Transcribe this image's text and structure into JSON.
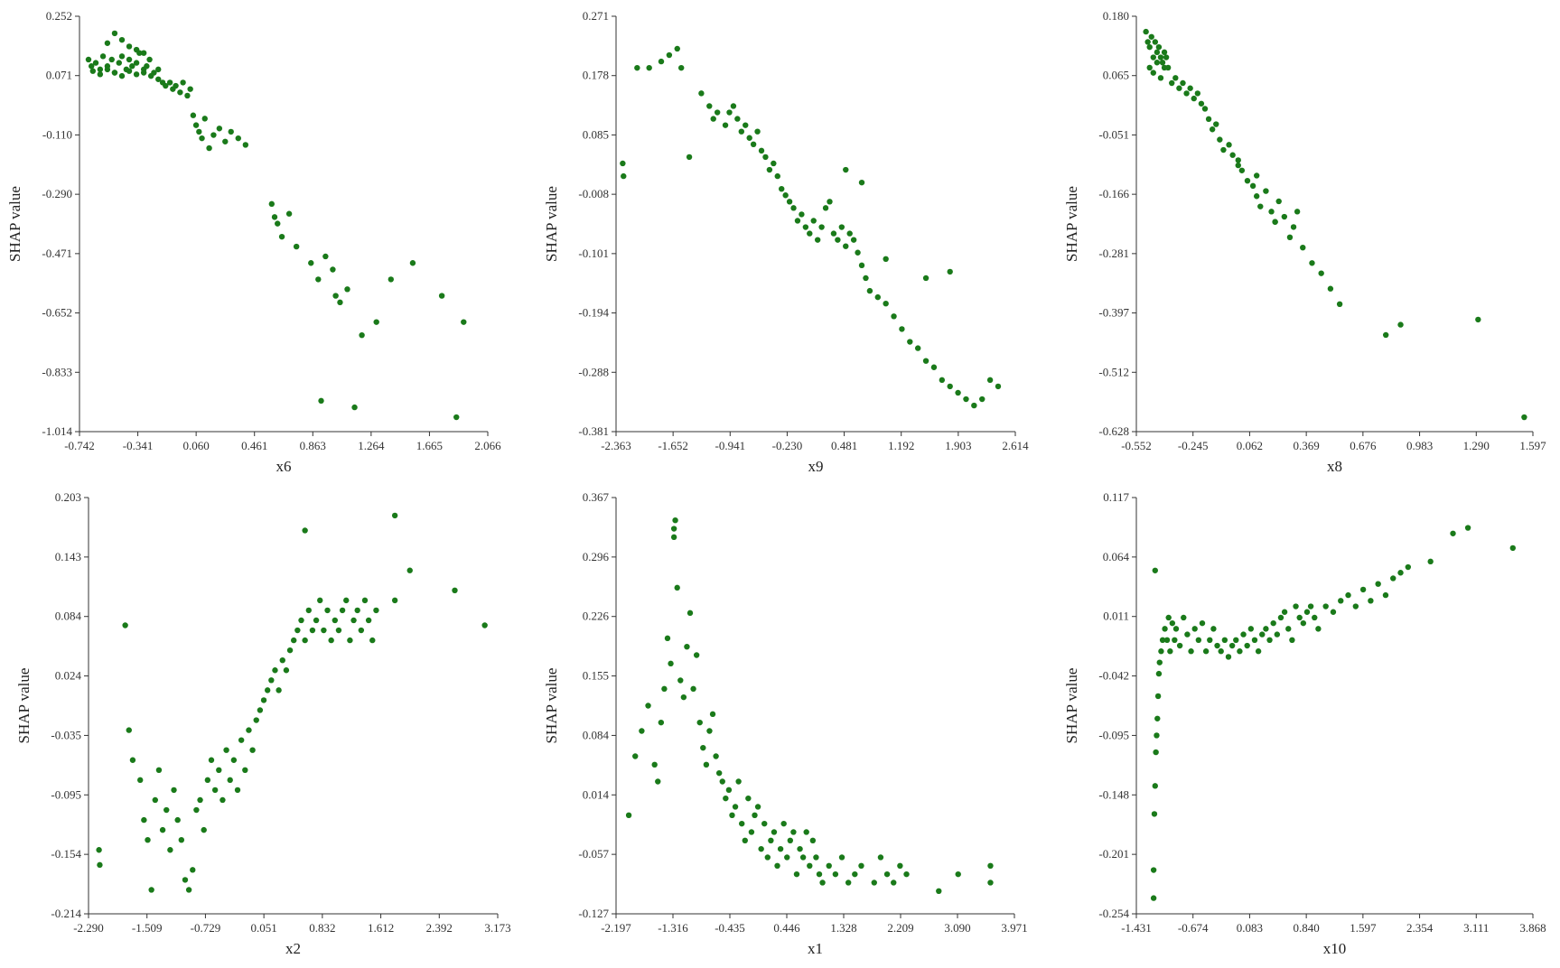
{
  "figure": {
    "point_color": "#1a7a1a",
    "axis_color": "#333333"
  },
  "chart_data": [
    {
      "type": "scatter",
      "xlabel": "x6",
      "ylabel": "SHAP value",
      "xticks": [
        "-0.742",
        "-0.341",
        "0.060",
        "0.461",
        "0.863",
        "1.264",
        "1.665",
        "2.066"
      ],
      "yticks": [
        "-1.014",
        "-0.833",
        "-0.652",
        "-0.471",
        "-0.290",
        "-0.110",
        "0.071",
        "0.252"
      ],
      "xlim": [
        -0.742,
        2.066
      ],
      "ylim": [
        -1.014,
        0.252
      ],
      "x": [
        -0.68,
        -0.66,
        -0.63,
        -0.6,
        -0.58,
        -0.55,
        -0.52,
        -0.5,
        -0.47,
        -0.45,
        -0.42,
        -0.4,
        -0.38,
        -0.35,
        -0.33,
        -0.3,
        -0.28,
        -0.26,
        -0.23,
        -0.2,
        -0.65,
        -0.6,
        -0.55,
        -0.5,
        -0.45,
        -0.4,
        -0.35,
        -0.3,
        -0.25,
        -0.55,
        -0.5,
        -0.45,
        -0.4,
        -0.35,
        -0.3,
        -0.2,
        -0.17,
        -0.15,
        -0.12,
        -0.1,
        -0.08,
        -0.05,
        -0.03,
        0.0,
        0.02,
        0.04,
        0.06,
        0.08,
        0.1,
        0.12,
        0.15,
        0.18,
        0.22,
        0.26,
        0.3,
        0.35,
        0.4,
        0.58,
        0.6,
        0.62,
        0.65,
        0.7,
        0.75,
        0.85,
        0.9,
        0.95,
        1.0,
        1.02,
        1.05,
        1.1,
        1.2,
        1.3,
        1.4,
        1.55,
        1.75,
        1.9,
        0.92,
        1.15,
        1.85
      ],
      "y": [
        0.12,
        0.1,
        0.11,
        0.09,
        0.13,
        0.1,
        0.12,
        0.08,
        0.11,
        0.13,
        0.09,
        0.12,
        0.1,
        0.11,
        0.14,
        0.09,
        0.1,
        0.12,
        0.08,
        0.09,
        0.085,
        0.075,
        0.09,
        0.08,
        0.07,
        0.085,
        0.075,
        0.08,
        0.07,
        0.17,
        0.2,
        0.18,
        0.16,
        0.15,
        0.14,
        0.06,
        0.05,
        0.04,
        0.05,
        0.03,
        0.04,
        0.02,
        0.05,
        0.01,
        0.03,
        -0.05,
        -0.08,
        -0.1,
        -0.12,
        -0.06,
        -0.15,
        -0.11,
        -0.09,
        -0.13,
        -0.1,
        -0.12,
        -0.14,
        -0.32,
        -0.36,
        -0.38,
        -0.42,
        -0.35,
        -0.45,
        -0.5,
        -0.55,
        -0.48,
        -0.52,
        -0.6,
        -0.62,
        -0.58,
        -0.72,
        -0.68,
        -0.55,
        -0.5,
        -0.6,
        -0.68,
        -0.92,
        -0.94,
        -0.97
      ]
    },
    {
      "type": "scatter",
      "xlabel": "x9",
      "ylabel": "SHAP value",
      "xticks": [
        "-2.363",
        "-1.652",
        "-0.941",
        "-0.230",
        "0.481",
        "1.192",
        "1.903",
        "2.614"
      ],
      "yticks": [
        "-0.381",
        "-0.288",
        "-0.194",
        "-0.101",
        "-0.008",
        "0.085",
        "0.178",
        "0.271"
      ],
      "xlim": [
        -2.363,
        2.614
      ],
      "ylim": [
        -0.381,
        0.271
      ],
      "x": [
        -2.28,
        -2.27,
        -2.1,
        -1.95,
        -1.8,
        -1.7,
        -1.6,
        -1.55,
        -1.45,
        -1.3,
        -1.2,
        -1.15,
        -1.1,
        -1.0,
        -0.95,
        -0.9,
        -0.85,
        -0.8,
        -0.75,
        -0.7,
        -0.65,
        -0.6,
        -0.55,
        -0.5,
        -0.45,
        -0.4,
        -0.35,
        -0.3,
        -0.25,
        -0.2,
        -0.15,
        -0.1,
        -0.05,
        0.0,
        0.05,
        0.1,
        0.15,
        0.2,
        0.25,
        0.3,
        0.35,
        0.4,
        0.45,
        0.5,
        0.55,
        0.6,
        0.65,
        0.7,
        0.75,
        0.8,
        0.9,
        1.0,
        1.1,
        1.2,
        1.3,
        1.4,
        1.5,
        1.6,
        1.7,
        1.8,
        1.9,
        2.0,
        2.1,
        2.2,
        2.3,
        2.4,
        0.5,
        0.7,
        1.0,
        1.5,
        1.8
      ],
      "y": [
        0.04,
        0.02,
        0.19,
        0.19,
        0.2,
        0.21,
        0.22,
        0.19,
        0.05,
        0.15,
        0.13,
        0.11,
        0.12,
        0.1,
        0.12,
        0.13,
        0.11,
        0.09,
        0.1,
        0.08,
        0.07,
        0.09,
        0.06,
        0.05,
        0.03,
        0.04,
        0.02,
        0.0,
        -0.01,
        -0.02,
        -0.03,
        -0.05,
        -0.04,
        -0.06,
        -0.07,
        -0.05,
        -0.08,
        -0.06,
        -0.03,
        -0.02,
        -0.07,
        -0.08,
        -0.06,
        -0.09,
        -0.07,
        -0.08,
        -0.1,
        -0.12,
        -0.14,
        -0.16,
        -0.17,
        -0.18,
        -0.2,
        -0.22,
        -0.24,
        -0.25,
        -0.27,
        -0.28,
        -0.3,
        -0.31,
        -0.32,
        -0.33,
        -0.34,
        -0.33,
        -0.3,
        -0.31,
        0.03,
        0.01,
        -0.11,
        -0.14,
        -0.13
      ]
    },
    {
      "type": "scatter",
      "xlabel": "x8",
      "ylabel": "SHAP value",
      "xticks": [
        "-0.552",
        "-0.245",
        "0.062",
        "0.369",
        "0.676",
        "0.983",
        "1.290",
        "1.597"
      ],
      "yticks": [
        "-0.628",
        "-0.512",
        "-0.397",
        "-0.281",
        "-0.166",
        "-0.051",
        "0.065",
        "0.180"
      ],
      "xlim": [
        -0.552,
        1.597
      ],
      "ylim": [
        -0.628,
        0.18
      ],
      "x": [
        -0.5,
        -0.49,
        -0.48,
        -0.47,
        -0.46,
        -0.45,
        -0.44,
        -0.43,
        -0.42,
        -0.41,
        -0.4,
        -0.39,
        -0.38,
        -0.48,
        -0.46,
        -0.44,
        -0.42,
        -0.4,
        -0.36,
        -0.34,
        -0.32,
        -0.3,
        -0.28,
        -0.26,
        -0.24,
        -0.22,
        -0.2,
        -0.18,
        -0.16,
        -0.14,
        -0.12,
        -0.1,
        -0.08,
        -0.05,
        -0.03,
        0.0,
        0.02,
        0.05,
        0.08,
        0.1,
        0.12,
        0.15,
        0.18,
        0.2,
        0.22,
        0.25,
        0.28,
        0.3,
        0.32,
        0.35,
        0.4,
        0.45,
        0.5,
        0.55,
        0.8,
        0.88,
        1.3,
        1.55,
        0.0,
        0.1,
        0.2
      ],
      "y": [
        0.15,
        0.13,
        0.12,
        0.14,
        0.1,
        0.13,
        0.11,
        0.12,
        0.1,
        0.09,
        0.11,
        0.1,
        0.08,
        0.08,
        0.07,
        0.09,
        0.06,
        0.08,
        0.05,
        0.06,
        0.04,
        0.05,
        0.03,
        0.04,
        0.02,
        0.03,
        0.01,
        0.0,
        -0.02,
        -0.04,
        -0.03,
        -0.06,
        -0.08,
        -0.07,
        -0.09,
        -0.1,
        -0.12,
        -0.14,
        -0.15,
        -0.17,
        -0.19,
        -0.16,
        -0.2,
        -0.22,
        -0.18,
        -0.21,
        -0.25,
        -0.23,
        -0.2,
        -0.27,
        -0.3,
        -0.32,
        -0.35,
        -0.38,
        -0.44,
        -0.42,
        -0.41,
        -0.6,
        -0.11,
        -0.13,
        -0.22
      ]
    },
    {
      "type": "scatter",
      "xlabel": "x2",
      "ylabel": "SHAP value",
      "xticks": [
        "-2.290",
        "-1.509",
        "-0.729",
        "0.051",
        "0.832",
        "1.612",
        "2.392",
        "3.173"
      ],
      "yticks": [
        "-0.214",
        "-0.154",
        "-0.095",
        "-0.035",
        "0.024",
        "0.084",
        "0.143",
        "0.203"
      ],
      "xlim": [
        -2.29,
        3.173
      ],
      "ylim": [
        -0.214,
        0.203
      ],
      "x": [
        -2.15,
        -2.14,
        -1.8,
        -1.75,
        -1.7,
        -1.6,
        -1.55,
        -1.5,
        -1.45,
        -1.4,
        -1.35,
        -1.3,
        -1.25,
        -1.2,
        -1.15,
        -1.1,
        -1.05,
        -1.0,
        -0.95,
        -0.9,
        -0.85,
        -0.8,
        -0.75,
        -0.7,
        -0.65,
        -0.6,
        -0.55,
        -0.5,
        -0.45,
        -0.4,
        -0.35,
        -0.3,
        -0.25,
        -0.2,
        -0.15,
        -0.1,
        -0.05,
        0.0,
        0.05,
        0.1,
        0.15,
        0.2,
        0.25,
        0.3,
        0.35,
        0.4,
        0.45,
        0.5,
        0.55,
        0.6,
        0.65,
        0.7,
        0.75,
        0.8,
        0.85,
        0.9,
        0.95,
        1.0,
        1.05,
        1.1,
        1.15,
        1.2,
        1.25,
        1.3,
        1.35,
        1.4,
        1.45,
        1.5,
        1.55,
        1.8,
        2.0,
        2.6,
        3.0,
        0.6,
        1.8
      ],
      "y": [
        -0.15,
        -0.165,
        0.075,
        -0.03,
        -0.06,
        -0.08,
        -0.12,
        -0.14,
        -0.19,
        -0.1,
        -0.07,
        -0.13,
        -0.11,
        -0.15,
        -0.09,
        -0.12,
        -0.14,
        -0.18,
        -0.19,
        -0.17,
        -0.11,
        -0.1,
        -0.13,
        -0.08,
        -0.06,
        -0.09,
        -0.07,
        -0.1,
        -0.05,
        -0.08,
        -0.06,
        -0.09,
        -0.04,
        -0.07,
        -0.03,
        -0.05,
        -0.02,
        -0.01,
        0.0,
        0.01,
        0.02,
        0.03,
        0.01,
        0.04,
        0.03,
        0.05,
        0.06,
        0.07,
        0.08,
        0.06,
        0.09,
        0.07,
        0.08,
        0.1,
        0.07,
        0.09,
        0.06,
        0.08,
        0.07,
        0.09,
        0.1,
        0.06,
        0.08,
        0.09,
        0.07,
        0.1,
        0.08,
        0.06,
        0.09,
        0.1,
        0.13,
        0.11,
        0.075,
        0.17,
        0.185
      ]
    },
    {
      "type": "scatter",
      "xlabel": "x1",
      "ylabel": "SHAP value",
      "xticks": [
        "-2.197",
        "-1.316",
        "-0.435",
        "0.446",
        "1.328",
        "2.209",
        "3.090",
        "3.971"
      ],
      "yticks": [
        "-0.127",
        "-0.057",
        "0.014",
        "0.084",
        "0.155",
        "0.226",
        "0.296",
        "0.367"
      ],
      "xlim": [
        -2.197,
        3.971
      ],
      "ylim": [
        -0.127,
        0.367
      ],
      "x": [
        -2.0,
        -1.9,
        -1.8,
        -1.7,
        -1.6,
        -1.55,
        -1.5,
        -1.45,
        -1.4,
        -1.35,
        -1.3,
        -1.28,
        -1.25,
        -1.2,
        -1.15,
        -1.1,
        -1.05,
        -1.0,
        -0.95,
        -0.9,
        -0.85,
        -0.8,
        -0.75,
        -0.7,
        -0.65,
        -0.6,
        -0.55,
        -0.5,
        -0.45,
        -0.4,
        -0.35,
        -0.3,
        -0.25,
        -0.2,
        -0.15,
        -0.1,
        -0.05,
        0.0,
        0.05,
        0.1,
        0.15,
        0.2,
        0.25,
        0.3,
        0.35,
        0.4,
        0.45,
        0.5,
        0.55,
        0.6,
        0.65,
        0.7,
        0.75,
        0.8,
        0.85,
        0.9,
        0.95,
        1.0,
        1.1,
        1.2,
        1.3,
        1.4,
        1.5,
        1.6,
        1.8,
        1.9,
        2.0,
        2.1,
        2.2,
        2.3,
        2.8,
        3.1,
        3.6,
        3.6,
        -1.3
      ],
      "y": [
        -0.01,
        0.06,
        0.09,
        0.12,
        0.05,
        0.03,
        0.1,
        0.14,
        0.2,
        0.17,
        0.33,
        0.34,
        0.26,
        0.15,
        0.13,
        0.19,
        0.23,
        0.14,
        0.18,
        0.1,
        0.07,
        0.05,
        0.09,
        0.11,
        0.06,
        0.04,
        0.03,
        0.01,
        0.02,
        -0.01,
        0.0,
        0.03,
        -0.02,
        -0.04,
        0.01,
        -0.03,
        -0.01,
        0.0,
        -0.05,
        -0.02,
        -0.06,
        -0.04,
        -0.03,
        -0.07,
        -0.05,
        -0.02,
        -0.06,
        -0.04,
        -0.03,
        -0.08,
        -0.05,
        -0.06,
        -0.03,
        -0.07,
        -0.04,
        -0.06,
        -0.08,
        -0.09,
        -0.07,
        -0.08,
        -0.06,
        -0.09,
        -0.08,
        -0.07,
        -0.09,
        -0.06,
        -0.08,
        -0.09,
        -0.07,
        -0.08,
        -0.1,
        -0.08,
        -0.07,
        -0.09,
        0.32
      ]
    },
    {
      "type": "scatter",
      "xlabel": "x10",
      "ylabel": "SHAP value",
      "xticks": [
        "-1.431",
        "-0.674",
        "0.083",
        "0.840",
        "1.597",
        "2.354",
        "3.111",
        "3.868"
      ],
      "yticks": [
        "-0.254",
        "-0.201",
        "-0.148",
        "-0.095",
        "-0.042",
        "0.011",
        "0.064",
        "0.117"
      ],
      "xlim": [
        -1.431,
        3.868
      ],
      "ylim": [
        -0.254,
        0.117
      ],
      "x": [
        -1.2,
        -1.2,
        -1.19,
        -1.18,
        -1.17,
        -1.16,
        -1.15,
        -1.14,
        -1.13,
        -1.12,
        -1.1,
        -1.08,
        -1.05,
        -1.02,
        -1.0,
        -0.98,
        -0.95,
        -0.92,
        -0.9,
        -0.85,
        -0.8,
        -0.75,
        -0.7,
        -0.65,
        -0.6,
        -0.55,
        -0.5,
        -0.45,
        -0.4,
        -0.35,
        -0.3,
        -0.25,
        -0.2,
        -0.15,
        -0.1,
        -0.05,
        0.0,
        0.05,
        0.1,
        0.15,
        0.2,
        0.25,
        0.3,
        0.35,
        0.4,
        0.45,
        0.5,
        0.55,
        0.6,
        0.65,
        0.7,
        0.75,
        0.8,
        0.85,
        0.9,
        0.95,
        1.0,
        1.1,
        1.2,
        1.3,
        1.4,
        1.5,
        1.6,
        1.7,
        1.8,
        1.9,
        2.0,
        2.1,
        2.2,
        2.5,
        2.8,
        3.0,
        3.6,
        -1.18
      ],
      "y": [
        -0.24,
        -0.215,
        -0.165,
        -0.14,
        -0.11,
        -0.095,
        -0.08,
        -0.06,
        -0.04,
        -0.03,
        -0.02,
        -0.01,
        0.0,
        -0.01,
        0.01,
        -0.02,
        0.005,
        -0.01,
        0.0,
        -0.015,
        0.01,
        -0.005,
        -0.02,
        0.0,
        -0.01,
        0.005,
        -0.02,
        -0.01,
        0.0,
        -0.015,
        -0.02,
        -0.01,
        -0.025,
        -0.015,
        -0.01,
        -0.02,
        -0.005,
        -0.015,
        0.0,
        -0.01,
        -0.02,
        -0.005,
        0.0,
        -0.01,
        0.005,
        -0.005,
        0.01,
        0.015,
        0.0,
        -0.01,
        0.02,
        0.01,
        0.005,
        0.015,
        0.02,
        0.01,
        0.0,
        0.02,
        0.015,
        0.025,
        0.03,
        0.02,
        0.035,
        0.025,
        0.04,
        0.03,
        0.045,
        0.05,
        0.055,
        0.06,
        0.085,
        0.09,
        0.072,
        0.052
      ]
    }
  ]
}
